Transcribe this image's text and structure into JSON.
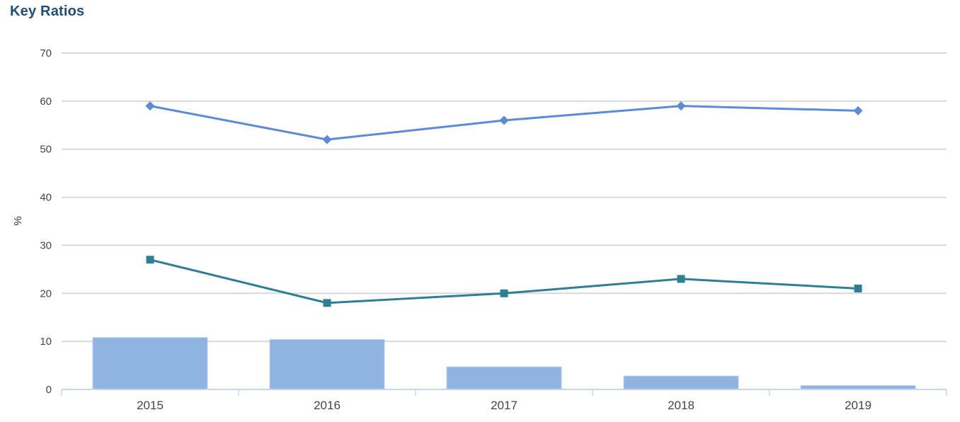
{
  "page": {
    "title": "Key Ratios"
  },
  "chart_data": {
    "type": "combo",
    "title": "Key Ratios",
    "xlabel": "",
    "ylabel": "%",
    "categories": [
      "2015",
      "2016",
      "2017",
      "2018",
      "2019"
    ],
    "yticks": [
      0,
      10,
      20,
      30,
      40,
      50,
      60,
      70
    ],
    "ylim": [
      0,
      70
    ],
    "grid": true,
    "legend": "none",
    "series": [
      {
        "name": "bar-series",
        "type": "bar",
        "color": "#8FB4E2",
        "border_color": "#BDD0EF",
        "values": [
          10.8,
          10.4,
          4.7,
          2.8,
          0.8
        ]
      },
      {
        "name": "line-series-teal",
        "type": "line",
        "marker": "square",
        "color": "#2E7F93",
        "values": [
          27,
          18,
          20,
          23,
          21
        ]
      },
      {
        "name": "line-series-blue",
        "type": "line",
        "marker": "diamond",
        "color": "#5B8BD5",
        "values": [
          59,
          52,
          56,
          59,
          58
        ]
      }
    ]
  },
  "colors": {
    "title": "#1F4E79",
    "gridline": "#D8D8D8",
    "axis_line": "#C9D5EE",
    "tick_label": "#454545"
  }
}
